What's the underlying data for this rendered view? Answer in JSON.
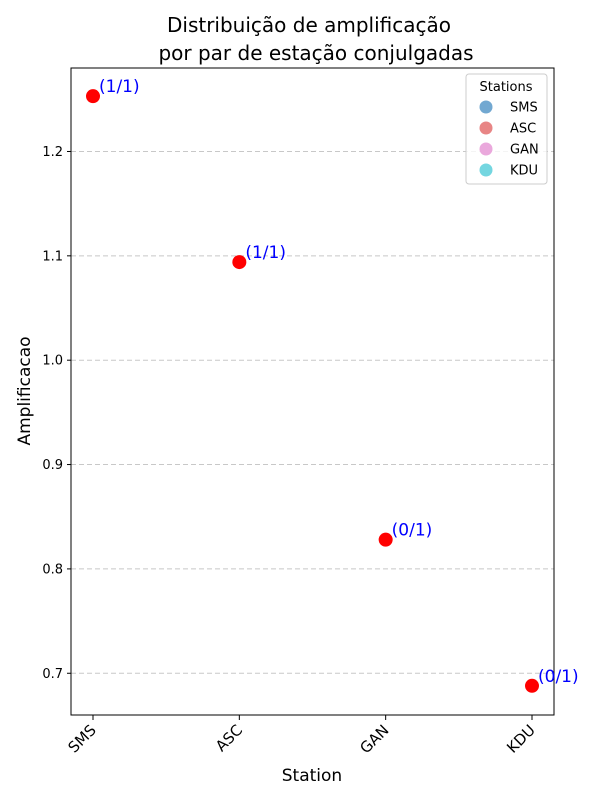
{
  "chart_data": {
    "type": "scatter",
    "title_line1": "Distribuição de amplificação",
    "title_line2": "por par de estação conjulgadas",
    "xlabel": "Station",
    "ylabel": "Amplificacao",
    "categories": [
      "SMS",
      "ASC",
      "GAN",
      "KDU"
    ],
    "values": [
      1.253,
      1.094,
      0.828,
      0.688
    ],
    "annotations": [
      "(1/1)",
      "(1/1)",
      "(0/1)",
      "(0/1)"
    ],
    "point_color": "#ff0000",
    "annotation_color": "#0000ff",
    "ylim": [
      0.66,
      1.28
    ],
    "yticks": [
      0.7,
      0.8,
      0.9,
      1.0,
      1.1,
      1.2
    ],
    "ytick_labels": [
      "0.7",
      "0.8",
      "0.9",
      "1.0",
      "1.1",
      "1.2"
    ],
    "grid": "y-dashed",
    "legend": {
      "title": "Stations",
      "placement": "top-right",
      "entries": [
        {
          "label": "SMS",
          "color": "#72a8d1"
        },
        {
          "label": "ASC",
          "color": "#e88585"
        },
        {
          "label": "GAN",
          "color": "#eaa8dc"
        },
        {
          "label": "KDU",
          "color": "#74d6e0"
        }
      ]
    }
  }
}
